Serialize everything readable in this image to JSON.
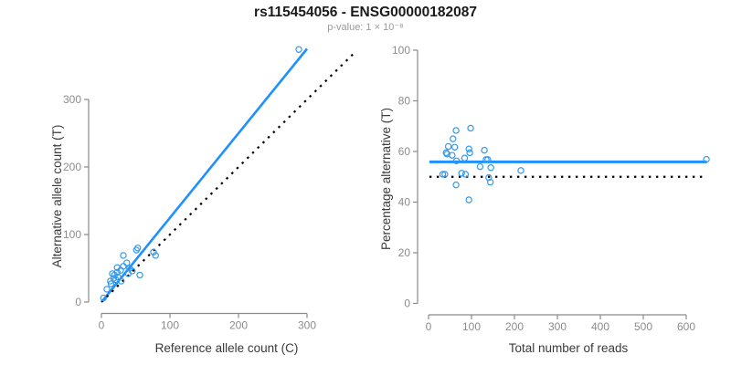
{
  "header": {
    "title": "rs115454056 - ENSG00000182087",
    "subtitle": "p-value: 1 × 10⁻⁸"
  },
  "colors": {
    "line_blue": "#1E90FF",
    "point_blue": "#3399EC",
    "dotted_black": "#000000",
    "axis_gray": "#8A8A8A",
    "tick_text_gray": "#8C8C8C",
    "axis_title_dark": "#3A3A3A",
    "title_black": "#1A1A1A",
    "subtitle_gray": "#9A9A9A",
    "background": "#FFFFFF"
  },
  "chart_data": [
    {
      "type": "scatter",
      "panel": "left",
      "title": "",
      "xlabel": "Reference allele count (C)",
      "ylabel": "Alternative allele count (T)",
      "xlim": [
        0,
        370
      ],
      "ylim": [
        0,
        380
      ],
      "xticks": [
        0,
        100,
        200,
        300
      ],
      "yticks": [
        0,
        100,
        200,
        300
      ],
      "grid": false,
      "legend": null,
      "points": [
        [
          3,
          6
        ],
        [
          8,
          19
        ],
        [
          13,
          31
        ],
        [
          14,
          27
        ],
        [
          16,
          42
        ],
        [
          18,
          35
        ],
        [
          19,
          40
        ],
        [
          21,
          33
        ],
        [
          23,
          44
        ],
        [
          23,
          51
        ],
        [
          24,
          37
        ],
        [
          28,
          47
        ],
        [
          29,
          31
        ],
        [
          32,
          53
        ],
        [
          32,
          69
        ],
        [
          37,
          58
        ],
        [
          39,
          42
        ],
        [
          41,
          50
        ],
        [
          45,
          46
        ],
        [
          51,
          77
        ],
        [
          53,
          80
        ],
        [
          56,
          40
        ],
        [
          76,
          74
        ],
        [
          79,
          69
        ],
        [
          288,
          374
        ]
      ],
      "lines": [
        {
          "name": "regression-line",
          "x1": 1,
          "y1": 1,
          "x2": 300,
          "y2": 375,
          "style": "solid"
        },
        {
          "name": "identity-line",
          "x1": 0,
          "y1": 0,
          "x2": 370,
          "y2": 370,
          "style": "dotted"
        }
      ]
    },
    {
      "type": "scatter",
      "panel": "right",
      "title": "",
      "xlabel": "Total number of reads",
      "ylabel": "Percentage alternative (T)",
      "xlim": [
        0,
        660
      ],
      "ylim": [
        0,
        100
      ],
      "xticks": [
        0,
        100,
        200,
        300,
        400,
        500,
        600
      ],
      "yticks": [
        0,
        20,
        40,
        60,
        80,
        100
      ],
      "grid": false,
      "legend": null,
      "points": [
        [
          33,
          51
        ],
        [
          38,
          51
        ],
        [
          41,
          59.5
        ],
        [
          43,
          59
        ],
        [
          46,
          62
        ],
        [
          55,
          58.5
        ],
        [
          57,
          65
        ],
        [
          61,
          61.7
        ],
        [
          64,
          68.3
        ],
        [
          64,
          46.8
        ],
        [
          65,
          56.3
        ],
        [
          77,
          51.4
        ],
        [
          84,
          57.4
        ],
        [
          86,
          51
        ],
        [
          94,
          61
        ],
        [
          94,
          40.9
        ],
        [
          96,
          59.5
        ],
        [
          98,
          69.2
        ],
        [
          120,
          54
        ],
        [
          130,
          60.5
        ],
        [
          134,
          56.8
        ],
        [
          138,
          56.8
        ],
        [
          140,
          49.7
        ],
        [
          144,
          47.9
        ],
        [
          145,
          53.6
        ],
        [
          215,
          52.5
        ],
        [
          647,
          56.9
        ]
      ],
      "lines": [
        {
          "name": "mean-percentage-line",
          "x1": 2,
          "y1": 55.9,
          "x2": 648,
          "y2": 55.9,
          "style": "solid"
        },
        {
          "name": "fifty-percent-line",
          "x1": 2,
          "y1": 50,
          "x2": 638,
          "y2": 50,
          "style": "dotted"
        }
      ]
    }
  ]
}
